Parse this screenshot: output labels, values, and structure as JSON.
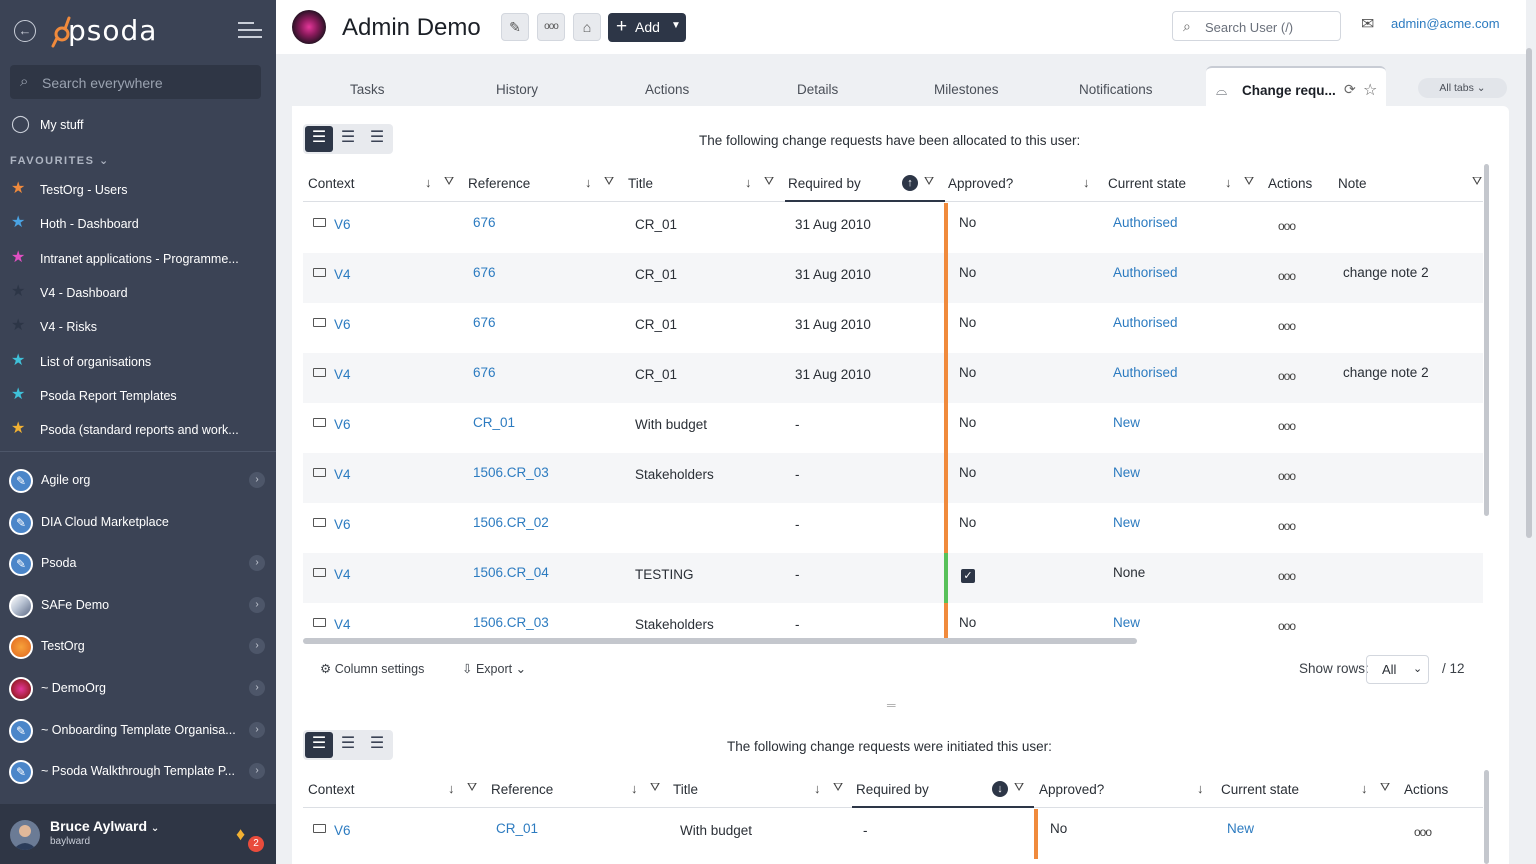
{
  "sidebar": {
    "logo_text": "psoda",
    "search_placeholder": "Search everywhere",
    "my_stuff": "My stuff",
    "favourites_heading": "FAVOURITES",
    "favourites": [
      {
        "label": "TestOrg - Users",
        "color": "#f08a3c"
      },
      {
        "label": "Hoth - Dashboard",
        "color": "#4aa3e3"
      },
      {
        "label": "Intranet applications - Programme...",
        "color": "#e04fc2"
      },
      {
        "label": "V4 - Dashboard",
        "color": "#2d3647"
      },
      {
        "label": "V4 - Risks",
        "color": "#2d3647"
      },
      {
        "label": "List of organisations",
        "color": "#3fc1d9"
      },
      {
        "label": "Psoda Report Templates",
        "color": "#3fc1d9"
      },
      {
        "label": "Psoda (standard reports and work...",
        "color": "#f2b132"
      }
    ],
    "orgs": [
      {
        "label": "Agile org"
      },
      {
        "label": "DIA Cloud Marketplace"
      },
      {
        "label": "Psoda"
      },
      {
        "label": "SAFe Demo"
      },
      {
        "label": "TestOrg"
      },
      {
        "label": "~ DemoOrg"
      },
      {
        "label": "~ Onboarding Template Organisa..."
      },
      {
        "label": "~ Psoda Walkthrough Template P..."
      }
    ],
    "user": {
      "name": "Bruce Aylward",
      "username": "baylward",
      "notifications": "2"
    }
  },
  "header": {
    "title": "Admin Demo",
    "add_label": "Add",
    "search_placeholder": "Search User (/)",
    "email": "admin@acme.com"
  },
  "tabs": {
    "items": [
      "Tasks",
      "History",
      "Actions",
      "Details",
      "Milestones",
      "Notifications"
    ],
    "active": "Change requ...",
    "all_tabs": "All tabs"
  },
  "grid1": {
    "caption": "The following change requests have been allocated to this user:",
    "columns": [
      "Context",
      "Reference",
      "Title",
      "Required by",
      "Approved?",
      "Current state",
      "Actions",
      "Note"
    ],
    "rows": [
      {
        "context": "V6",
        "reference": "676",
        "title": "CR_01",
        "required_by": "31 Aug 2010",
        "approved": "No",
        "state": "Authorised",
        "note": "",
        "bar": "#f08a3c"
      },
      {
        "context": "V4",
        "reference": "676",
        "title": "CR_01",
        "required_by": "31 Aug 2010",
        "approved": "No",
        "state": "Authorised",
        "note": "change note 2",
        "bar": "#f08a3c"
      },
      {
        "context": "V6",
        "reference": "676",
        "title": "CR_01",
        "required_by": "31 Aug 2010",
        "approved": "No",
        "state": "Authorised",
        "note": "",
        "bar": "#f08a3c"
      },
      {
        "context": "V4",
        "reference": "676",
        "title": "CR_01",
        "required_by": "31 Aug 2010",
        "approved": "No",
        "state": "Authorised",
        "note": "change note 2",
        "bar": "#f08a3c"
      },
      {
        "context": "V6",
        "reference": "CR_01",
        "title": "With budget",
        "required_by": "-",
        "approved": "No",
        "state": "New",
        "note": "",
        "bar": "#f08a3c"
      },
      {
        "context": "V4",
        "reference": "1506.CR_03",
        "title": "Stakeholders",
        "required_by": "-",
        "approved": "No",
        "state": "New",
        "note": "",
        "bar": "#f08a3c"
      },
      {
        "context": "V6",
        "reference": "1506.CR_02",
        "title": "",
        "required_by": "-",
        "approved": "No",
        "state": "New",
        "note": "",
        "bar": "#f08a3c"
      },
      {
        "context": "V4",
        "reference": "1506.CR_04",
        "title": "TESTING",
        "required_by": "-",
        "approved": "checked",
        "state": "None",
        "note": "",
        "bar": "#58c15a"
      },
      {
        "context": "V4",
        "reference": "1506.CR_03",
        "title": "Stakeholders",
        "required_by": "-",
        "approved": "No",
        "state": "New",
        "note": "",
        "bar": "#f08a3c"
      }
    ],
    "footer": {
      "column_settings": "Column settings",
      "export": "Export",
      "show_rows_label": "Show rows:",
      "show_rows_value": "All",
      "total": "/ 12"
    }
  },
  "grid2": {
    "caption": "The following change requests were initiated this user:",
    "columns": [
      "Context",
      "Reference",
      "Title",
      "Required by",
      "Approved?",
      "Current state",
      "Actions"
    ],
    "rows": [
      {
        "context": "V6",
        "reference": "CR_01",
        "title": "With budget",
        "required_by": "-",
        "approved": "No",
        "state": "New",
        "bar": "#f08a3c"
      }
    ]
  }
}
